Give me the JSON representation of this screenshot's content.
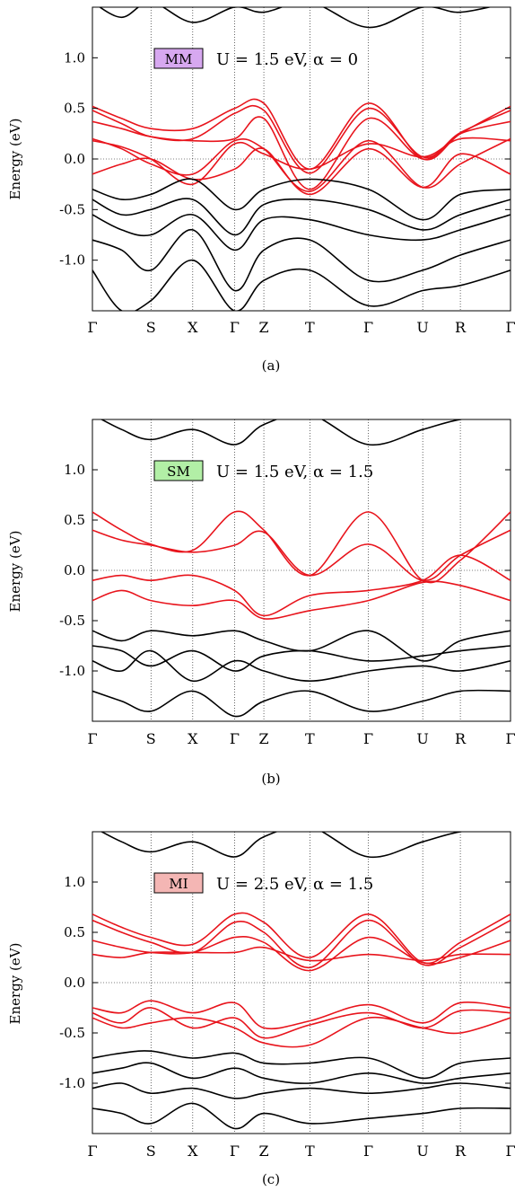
{
  "chart_data": [
    {
      "type": "line",
      "caption": "(a)",
      "ylabel": "Energy (eV)",
      "ylim": [
        -1.5,
        1.5
      ],
      "yticks": [
        "1.0",
        "0.5",
        "0.0",
        "-0.5",
        "-1.0"
      ],
      "ytick_values": [
        1.0,
        0.5,
        0.0,
        -0.5,
        -1.0
      ],
      "kpoints": [
        "Γ",
        "S",
        "X",
        "Γ",
        "Z",
        "T",
        "Γ",
        "U",
        "R",
        "Γ"
      ],
      "kpoint_positions": [
        0,
        0.14,
        0.24,
        0.34,
        0.41,
        0.52,
        0.66,
        0.79,
        0.88,
        1.0
      ],
      "state_label": "MM",
      "state_color": "#d7a8f0",
      "annotation": "U = 1.5 eV,  α = 0",
      "series": [
        {
          "group": "red",
          "color": "#e8141c",
          "x": [
            0,
            0.07,
            0.14,
            0.24,
            0.34,
            0.41,
            0.52,
            0.66,
            0.79,
            0.88,
            1.0
          ],
          "y": [
            0.52,
            0.4,
            0.3,
            0.3,
            0.5,
            0.55,
            -0.1,
            0.55,
            0.0,
            0.25,
            0.52
          ]
        },
        {
          "group": "red",
          "color": "#e8141c",
          "x": [
            0,
            0.07,
            0.14,
            0.24,
            0.34,
            0.41,
            0.52,
            0.66,
            0.79,
            0.88,
            1.0
          ],
          "y": [
            0.48,
            0.35,
            0.22,
            0.2,
            0.45,
            0.48,
            -0.14,
            0.5,
            0.02,
            0.26,
            0.48
          ]
        },
        {
          "group": "red",
          "color": "#e8141c",
          "x": [
            0,
            0.07,
            0.14,
            0.24,
            0.34,
            0.41,
            0.52,
            0.66,
            0.79,
            0.88,
            1.0
          ],
          "y": [
            0.37,
            0.3,
            0.22,
            0.18,
            0.2,
            0.4,
            -0.3,
            0.4,
            0.0,
            0.25,
            0.37
          ]
        },
        {
          "group": "red",
          "color": "#e8141c",
          "x": [
            0,
            0.07,
            0.14,
            0.24,
            0.34,
            0.41,
            0.52,
            0.66,
            0.79,
            0.88,
            1.0
          ],
          "y": [
            0.2,
            0.1,
            -0.05,
            -0.15,
            0.18,
            0.1,
            -0.32,
            0.18,
            -0.28,
            -0.05,
            0.2
          ]
        },
        {
          "group": "red",
          "color": "#e8141c",
          "x": [
            0,
            0.07,
            0.14,
            0.24,
            0.34,
            0.41,
            0.52,
            0.66,
            0.79,
            0.88,
            1.0
          ],
          "y": [
            0.18,
            0.12,
            0.0,
            -0.25,
            0.15,
            0.05,
            -0.1,
            0.15,
            0.02,
            0.2,
            0.18
          ]
        },
        {
          "group": "red",
          "color": "#e8141c",
          "x": [
            0,
            0.07,
            0.14,
            0.24,
            0.34,
            0.41,
            0.52,
            0.66,
            0.79,
            0.88,
            1.0
          ],
          "y": [
            -0.15,
            -0.05,
            0.0,
            -0.2,
            -0.1,
            0.1,
            -0.35,
            0.1,
            -0.28,
            0.05,
            -0.15
          ]
        },
        {
          "group": "black",
          "color": "#000000",
          "x": [
            0,
            0.07,
            0.14,
            0.24,
            0.34,
            0.41,
            0.52,
            0.66,
            0.79,
            0.88,
            1.0
          ],
          "y": [
            -0.3,
            -0.4,
            -0.35,
            -0.2,
            -0.5,
            -0.3,
            -0.2,
            -0.3,
            -0.6,
            -0.35,
            -0.3
          ]
        },
        {
          "group": "black",
          "color": "#000000",
          "x": [
            0,
            0.07,
            0.14,
            0.24,
            0.34,
            0.41,
            0.52,
            0.66,
            0.79,
            0.88,
            1.0
          ],
          "y": [
            -0.4,
            -0.55,
            -0.5,
            -0.4,
            -0.75,
            -0.45,
            -0.4,
            -0.5,
            -0.7,
            -0.55,
            -0.4
          ]
        },
        {
          "group": "black",
          "color": "#000000",
          "x": [
            0,
            0.07,
            0.14,
            0.24,
            0.34,
            0.41,
            0.52,
            0.66,
            0.79,
            0.88,
            1.0
          ],
          "y": [
            -0.55,
            -0.7,
            -0.75,
            -0.55,
            -0.9,
            -0.6,
            -0.6,
            -0.75,
            -0.8,
            -0.7,
            -0.55
          ]
        },
        {
          "group": "black",
          "color": "#000000",
          "x": [
            0,
            0.07,
            0.14,
            0.24,
            0.34,
            0.41,
            0.52,
            0.66,
            0.79,
            0.88,
            1.0
          ],
          "y": [
            -0.8,
            -0.9,
            -1.1,
            -0.7,
            -1.3,
            -0.9,
            -0.8,
            -1.2,
            -1.1,
            -0.95,
            -0.8
          ]
        },
        {
          "group": "black",
          "color": "#000000",
          "x": [
            0,
            0.07,
            0.14,
            0.24,
            0.34,
            0.41,
            0.52,
            0.66,
            0.79,
            0.88,
            1.0
          ],
          "y": [
            -1.1,
            -1.5,
            -1.4,
            -1.0,
            -1.5,
            -1.2,
            -1.1,
            -1.45,
            -1.3,
            -1.25,
            -1.1
          ]
        },
        {
          "group": "black",
          "color": "#000000",
          "x": [
            0,
            0.07,
            0.14,
            0.24,
            0.34,
            0.41,
            0.52,
            0.66,
            0.79,
            0.88,
            1.0
          ],
          "y": [
            1.55,
            1.4,
            1.55,
            1.35,
            1.5,
            1.45,
            1.55,
            1.3,
            1.5,
            1.45,
            1.55
          ]
        }
      ]
    },
    {
      "type": "line",
      "caption": "(b)",
      "ylabel": "Energy (eV)",
      "ylim": [
        -1.5,
        1.5
      ],
      "yticks": [
        "1.0",
        "0.5",
        "0.0",
        "-0.5",
        "-1.0"
      ],
      "ytick_values": [
        1.0,
        0.5,
        0.0,
        -0.5,
        -1.0
      ],
      "kpoints": [
        "Γ",
        "S",
        "X",
        "Γ",
        "Z",
        "T",
        "Γ",
        "U",
        "R",
        "Γ"
      ],
      "kpoint_positions": [
        0,
        0.14,
        0.24,
        0.34,
        0.41,
        0.52,
        0.66,
        0.79,
        0.88,
        1.0
      ],
      "state_label": "SM",
      "state_color": "#b2efa6",
      "annotation": "U = 1.5 eV,  α = 1.5",
      "series": [
        {
          "group": "red",
          "color": "#e8141c",
          "x": [
            0,
            0.07,
            0.14,
            0.24,
            0.34,
            0.41,
            0.52,
            0.66,
            0.79,
            0.88,
            1.0
          ],
          "y": [
            0.58,
            0.4,
            0.26,
            0.2,
            0.58,
            0.4,
            -0.05,
            0.58,
            -0.1,
            0.1,
            0.58
          ]
        },
        {
          "group": "red",
          "color": "#e8141c",
          "x": [
            0,
            0.07,
            0.14,
            0.24,
            0.34,
            0.41,
            0.52,
            0.66,
            0.79,
            0.88,
            1.0
          ],
          "y": [
            0.4,
            0.3,
            0.25,
            0.18,
            0.25,
            0.38,
            -0.05,
            0.26,
            -0.1,
            0.15,
            0.4
          ]
        },
        {
          "group": "red",
          "color": "#e8141c",
          "x": [
            0,
            0.07,
            0.14,
            0.24,
            0.34,
            0.41,
            0.52,
            0.66,
            0.79,
            0.88,
            1.0
          ],
          "y": [
            -0.1,
            -0.05,
            -0.1,
            -0.05,
            -0.2,
            -0.45,
            -0.25,
            -0.2,
            -0.1,
            0.15,
            -0.1
          ]
        },
        {
          "group": "red",
          "color": "#e8141c",
          "x": [
            0,
            0.07,
            0.14,
            0.24,
            0.34,
            0.41,
            0.52,
            0.66,
            0.79,
            0.88,
            1.0
          ],
          "y": [
            -0.3,
            -0.2,
            -0.3,
            -0.35,
            -0.3,
            -0.48,
            -0.4,
            -0.3,
            -0.12,
            -0.15,
            -0.3
          ]
        },
        {
          "group": "black",
          "color": "#000000",
          "x": [
            0,
            0.07,
            0.14,
            0.24,
            0.34,
            0.41,
            0.52,
            0.66,
            0.79,
            0.88,
            1.0
          ],
          "y": [
            -0.6,
            -0.7,
            -0.6,
            -0.65,
            -0.6,
            -0.7,
            -0.8,
            -0.6,
            -0.9,
            -0.7,
            -0.6
          ]
        },
        {
          "group": "black",
          "color": "#000000",
          "x": [
            0,
            0.07,
            0.14,
            0.24,
            0.34,
            0.41,
            0.52,
            0.66,
            0.79,
            0.88,
            1.0
          ],
          "y": [
            -0.75,
            -0.8,
            -0.95,
            -0.8,
            -1.0,
            -0.85,
            -0.8,
            -0.9,
            -0.85,
            -0.8,
            -0.75
          ]
        },
        {
          "group": "black",
          "color": "#000000",
          "x": [
            0,
            0.07,
            0.14,
            0.24,
            0.34,
            0.41,
            0.52,
            0.66,
            0.79,
            0.88,
            1.0
          ],
          "y": [
            -0.9,
            -1.0,
            -0.8,
            -1.1,
            -0.9,
            -1.0,
            -1.1,
            -1.0,
            -0.95,
            -1.0,
            -0.9
          ]
        },
        {
          "group": "black",
          "color": "#000000",
          "x": [
            0,
            0.07,
            0.14,
            0.24,
            0.34,
            0.41,
            0.52,
            0.66,
            0.79,
            0.88,
            1.0
          ],
          "y": [
            -1.2,
            -1.3,
            -1.4,
            -1.2,
            -1.45,
            -1.3,
            -1.2,
            -1.4,
            -1.3,
            -1.2,
            -1.2
          ]
        },
        {
          "group": "black",
          "color": "#000000",
          "x": [
            0,
            0.07,
            0.14,
            0.24,
            0.34,
            0.41,
            0.52,
            0.66,
            0.79,
            0.88,
            1.0
          ],
          "y": [
            1.55,
            1.4,
            1.3,
            1.4,
            1.25,
            1.45,
            1.55,
            1.25,
            1.4,
            1.5,
            1.55
          ]
        }
      ]
    },
    {
      "type": "line",
      "caption": "(c)",
      "ylabel": "Energy (eV)",
      "ylim": [
        -1.5,
        1.5
      ],
      "yticks": [
        "1.0",
        "0.5",
        "0.0",
        "-0.5",
        "-1.0"
      ],
      "ytick_values": [
        1.0,
        0.5,
        0.0,
        -0.5,
        -1.0
      ],
      "kpoints": [
        "Γ",
        "S",
        "X",
        "Γ",
        "Z",
        "T",
        "Γ",
        "U",
        "R",
        "Γ"
      ],
      "kpoint_positions": [
        0,
        0.14,
        0.24,
        0.34,
        0.41,
        0.52,
        0.66,
        0.79,
        0.88,
        1.0
      ],
      "state_label": "MI",
      "state_color": "#f4b6b4",
      "annotation": "U = 2.5 eV,  α = 1.5",
      "series": [
        {
          "group": "red",
          "color": "#e8141c",
          "x": [
            0,
            0.07,
            0.14,
            0.24,
            0.34,
            0.41,
            0.52,
            0.66,
            0.79,
            0.88,
            1.0
          ],
          "y": [
            0.68,
            0.55,
            0.45,
            0.38,
            0.68,
            0.6,
            0.25,
            0.68,
            0.2,
            0.4,
            0.68
          ]
        },
        {
          "group": "red",
          "color": "#e8141c",
          "x": [
            0,
            0.07,
            0.14,
            0.24,
            0.34,
            0.41,
            0.52,
            0.66,
            0.79,
            0.88,
            1.0
          ],
          "y": [
            0.62,
            0.5,
            0.4,
            0.3,
            0.6,
            0.5,
            0.15,
            0.62,
            0.18,
            0.35,
            0.62
          ]
        },
        {
          "group": "red",
          "color": "#e8141c",
          "x": [
            0,
            0.07,
            0.14,
            0.24,
            0.34,
            0.41,
            0.52,
            0.66,
            0.79,
            0.88,
            1.0
          ],
          "y": [
            0.42,
            0.35,
            0.3,
            0.3,
            0.45,
            0.4,
            0.12,
            0.45,
            0.2,
            0.25,
            0.42
          ]
        },
        {
          "group": "red",
          "color": "#e8141c",
          "x": [
            0,
            0.07,
            0.14,
            0.24,
            0.34,
            0.41,
            0.52,
            0.66,
            0.79,
            0.88,
            1.0
          ],
          "y": [
            0.28,
            0.25,
            0.3,
            0.3,
            0.3,
            0.35,
            0.22,
            0.28,
            0.22,
            0.28,
            0.28
          ]
        },
        {
          "group": "red",
          "color": "#e8141c",
          "x": [
            0,
            0.07,
            0.14,
            0.24,
            0.34,
            0.41,
            0.52,
            0.66,
            0.79,
            0.88,
            1.0
          ],
          "y": [
            -0.25,
            -0.3,
            -0.18,
            -0.3,
            -0.2,
            -0.45,
            -0.38,
            -0.22,
            -0.4,
            -0.2,
            -0.25
          ]
        },
        {
          "group": "red",
          "color": "#e8141c",
          "x": [
            0,
            0.07,
            0.14,
            0.24,
            0.34,
            0.41,
            0.52,
            0.66,
            0.79,
            0.88,
            1.0
          ],
          "y": [
            -0.3,
            -0.4,
            -0.25,
            -0.45,
            -0.35,
            -0.55,
            -0.42,
            -0.3,
            -0.45,
            -0.28,
            -0.3
          ]
        },
        {
          "group": "red",
          "color": "#e8141c",
          "x": [
            0,
            0.07,
            0.14,
            0.24,
            0.34,
            0.41,
            0.52,
            0.66,
            0.79,
            0.88,
            1.0
          ],
          "y": [
            -0.35,
            -0.45,
            -0.4,
            -0.35,
            -0.45,
            -0.6,
            -0.62,
            -0.35,
            -0.45,
            -0.5,
            -0.35
          ]
        },
        {
          "group": "black",
          "color": "#000000",
          "x": [
            0,
            0.07,
            0.14,
            0.24,
            0.34,
            0.41,
            0.52,
            0.66,
            0.79,
            0.88,
            1.0
          ],
          "y": [
            -0.75,
            -0.7,
            -0.68,
            -0.75,
            -0.7,
            -0.8,
            -0.8,
            -0.75,
            -0.95,
            -0.8,
            -0.75
          ]
        },
        {
          "group": "black",
          "color": "#000000",
          "x": [
            0,
            0.07,
            0.14,
            0.24,
            0.34,
            0.41,
            0.52,
            0.66,
            0.79,
            0.88,
            1.0
          ],
          "y": [
            -0.9,
            -0.85,
            -0.8,
            -0.95,
            -0.85,
            -0.95,
            -1.0,
            -0.9,
            -1.0,
            -0.95,
            -0.9
          ]
        },
        {
          "group": "black",
          "color": "#000000",
          "x": [
            0,
            0.07,
            0.14,
            0.24,
            0.34,
            0.41,
            0.52,
            0.66,
            0.79,
            0.88,
            1.0
          ],
          "y": [
            -1.05,
            -1.0,
            -1.1,
            -1.05,
            -1.15,
            -1.1,
            -1.05,
            -1.1,
            -1.05,
            -1.0,
            -1.05
          ]
        },
        {
          "group": "black",
          "color": "#000000",
          "x": [
            0,
            0.07,
            0.14,
            0.24,
            0.34,
            0.41,
            0.52,
            0.66,
            0.79,
            0.88,
            1.0
          ],
          "y": [
            -1.25,
            -1.3,
            -1.4,
            -1.2,
            -1.45,
            -1.3,
            -1.4,
            -1.35,
            -1.3,
            -1.25,
            -1.25
          ]
        },
        {
          "group": "black",
          "color": "#000000",
          "x": [
            0,
            0.07,
            0.14,
            0.24,
            0.34,
            0.41,
            0.52,
            0.66,
            0.79,
            0.88,
            1.0
          ],
          "y": [
            1.55,
            1.4,
            1.3,
            1.4,
            1.25,
            1.45,
            1.55,
            1.25,
            1.4,
            1.5,
            1.55
          ]
        }
      ]
    }
  ]
}
